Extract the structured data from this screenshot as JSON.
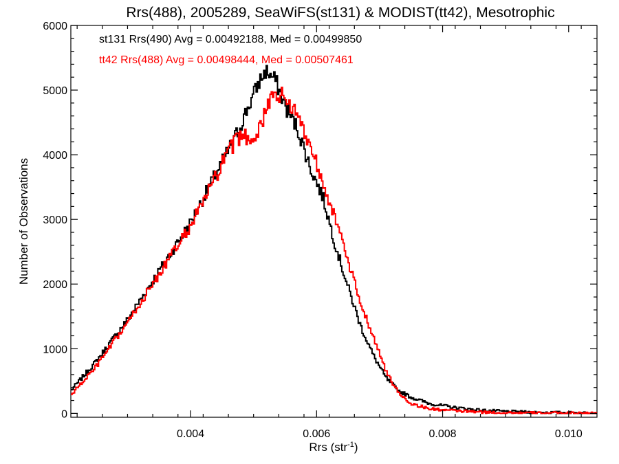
{
  "chart_data": {
    "type": "line",
    "step": true,
    "title": "Rrs(488), 2005289, SeaWiFS(st131) & MODIST(tt42), Mesotrophic",
    "xlabel": "Rrs (str",
    "xlabel_sup": "-1",
    "xlabel_close": ")",
    "ylabel": "Number of Observations",
    "xlim": [
      0.0021,
      0.01045
    ],
    "ylim": [
      -60,
      6000
    ],
    "x_ticks": [
      {
        "value": 0.004,
        "label": "0.004"
      },
      {
        "value": 0.006,
        "label": "0.006"
      },
      {
        "value": 0.008,
        "label": "0.008"
      },
      {
        "value": 0.01,
        "label": "0.010"
      }
    ],
    "y_ticks": [
      {
        "value": 0,
        "label": "0"
      },
      {
        "value": 1000,
        "label": "1000"
      },
      {
        "value": 2000,
        "label": "2000"
      },
      {
        "value": 3000,
        "label": "3000"
      },
      {
        "value": 4000,
        "label": "4000"
      },
      {
        "value": 5000,
        "label": "5000"
      },
      {
        "value": 6000,
        "label": "6000"
      }
    ],
    "grid": false,
    "annotations": [
      {
        "text": "st131 Rrs(490) Avg = 0.00492188, Med = 0.00499850",
        "color": "#000000"
      },
      {
        "text": "tt42 Rrs(488) Avg = 0.00498444, Med = 0.00507461",
        "color": "#ff0000"
      }
    ],
    "series": [
      {
        "color": "#000000",
        "points": [
          [
            0.0021,
            350
          ],
          [
            0.0025,
            800
          ],
          [
            0.003,
            1450
          ],
          [
            0.0035,
            2200
          ],
          [
            0.004,
            2950
          ],
          [
            0.0044,
            3700
          ],
          [
            0.0047,
            4250
          ],
          [
            0.0049,
            4700
          ],
          [
            0.0051,
            5150
          ],
          [
            0.0052,
            5300
          ],
          [
            0.00535,
            5150
          ],
          [
            0.0055,
            4750
          ],
          [
            0.0057,
            4400
          ],
          [
            0.0059,
            3800
          ],
          [
            0.0061,
            3350
          ],
          [
            0.0063,
            2600
          ],
          [
            0.0065,
            1950
          ],
          [
            0.0067,
            1350
          ],
          [
            0.0069,
            900
          ],
          [
            0.0071,
            550
          ],
          [
            0.0073,
            350
          ],
          [
            0.0075,
            250
          ],
          [
            0.0078,
            150
          ],
          [
            0.0082,
            90
          ],
          [
            0.0086,
            50
          ],
          [
            0.009,
            30
          ],
          [
            0.0095,
            15
          ],
          [
            0.01045,
            5
          ]
        ]
      },
      {
        "color": "#ff0000",
        "points": [
          [
            0.0021,
            280
          ],
          [
            0.0025,
            720
          ],
          [
            0.003,
            1400
          ],
          [
            0.0035,
            2150
          ],
          [
            0.004,
            2900
          ],
          [
            0.0044,
            3650
          ],
          [
            0.0046,
            4050
          ],
          [
            0.0048,
            4300
          ],
          [
            0.005,
            4250
          ],
          [
            0.0052,
            4650
          ],
          [
            0.0053,
            4950
          ],
          [
            0.0055,
            4900
          ],
          [
            0.0057,
            4600
          ],
          [
            0.0059,
            4150
          ],
          [
            0.0061,
            3600
          ],
          [
            0.0063,
            3000
          ],
          [
            0.0065,
            2350
          ],
          [
            0.0067,
            1700
          ],
          [
            0.0069,
            1200
          ],
          [
            0.0071,
            650
          ],
          [
            0.0073,
            320
          ],
          [
            0.0075,
            150
          ],
          [
            0.0078,
            70
          ],
          [
            0.0082,
            40
          ],
          [
            0.0086,
            20
          ],
          [
            0.009,
            10
          ],
          [
            0.0095,
            5
          ],
          [
            0.01045,
            2
          ]
        ]
      }
    ]
  }
}
